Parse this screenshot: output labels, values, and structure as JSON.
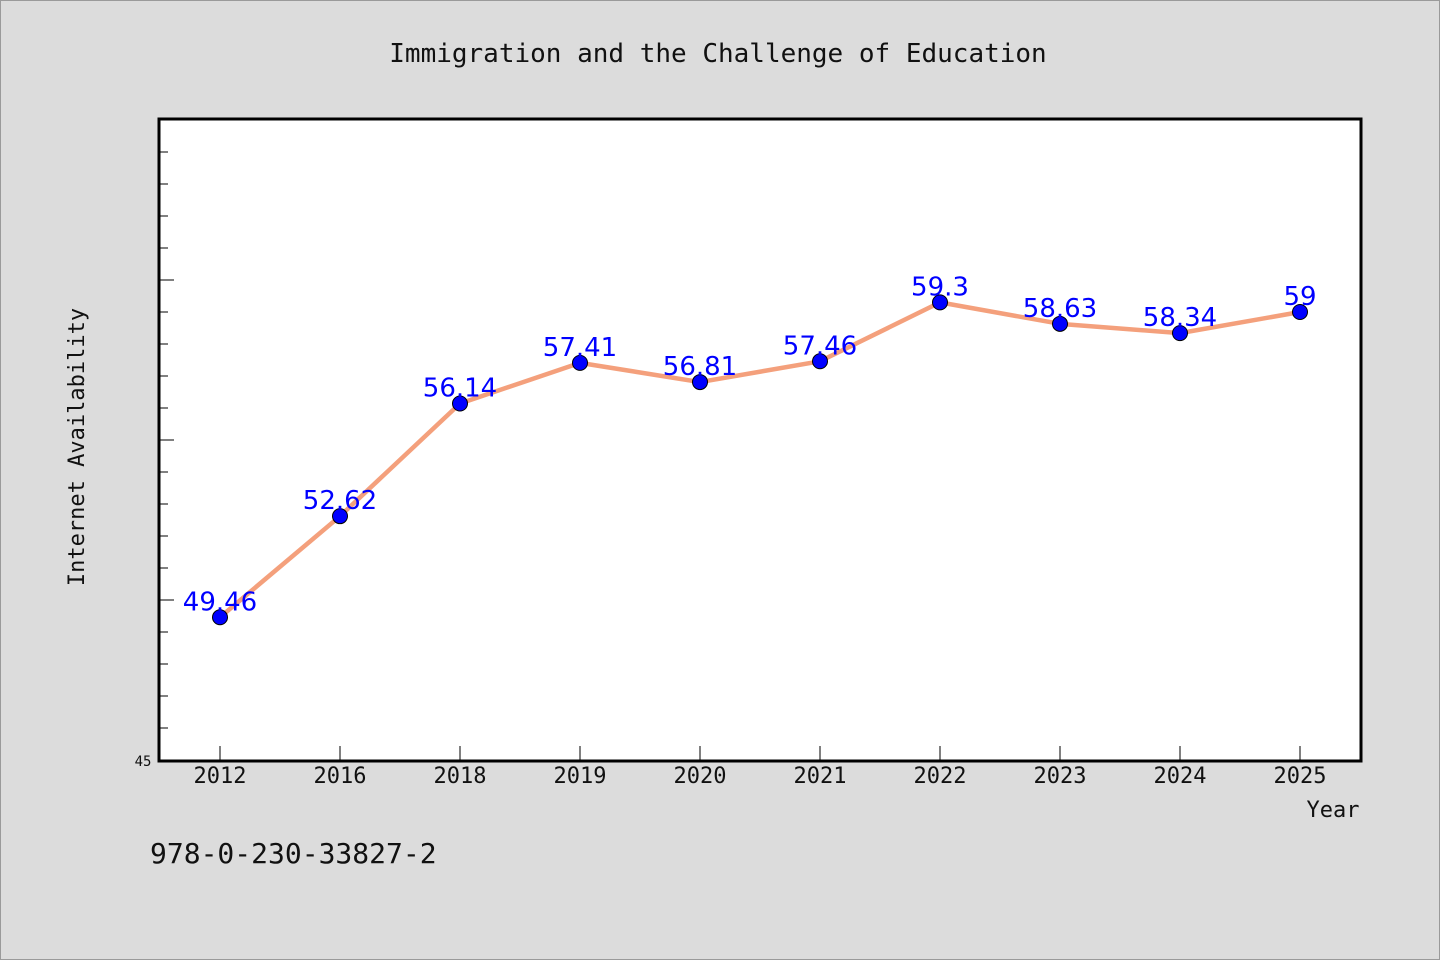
{
  "chart_data": {
    "type": "line",
    "title": "Immigration and the Challenge of Education",
    "xlabel": "Year",
    "ylabel": "Internet Availability",
    "categories": [
      "2012",
      "2016",
      "2018",
      "2019",
      "2020",
      "2021",
      "2022",
      "2023",
      "2024",
      "2025"
    ],
    "series": [
      {
        "values": [
          49.46,
          52.62,
          56.14,
          57.41,
          56.81,
          57.46,
          59.3,
          58.63,
          58.34,
          59
        ],
        "labels": [
          "49.46",
          "52.62",
          "56.14",
          "57.41",
          "56.81",
          "57.46",
          "59.3",
          "58.63",
          "58.34",
          "59"
        ]
      }
    ],
    "ylim": [
      45,
      65
    ],
    "y_tick_labels": [
      "45"
    ],
    "grid": false,
    "line_color": "#f4a07c",
    "marker_color": "#0000ff",
    "label_color": "#0000ff"
  },
  "footer": {
    "isbn": "978-0-230-33827-2"
  }
}
